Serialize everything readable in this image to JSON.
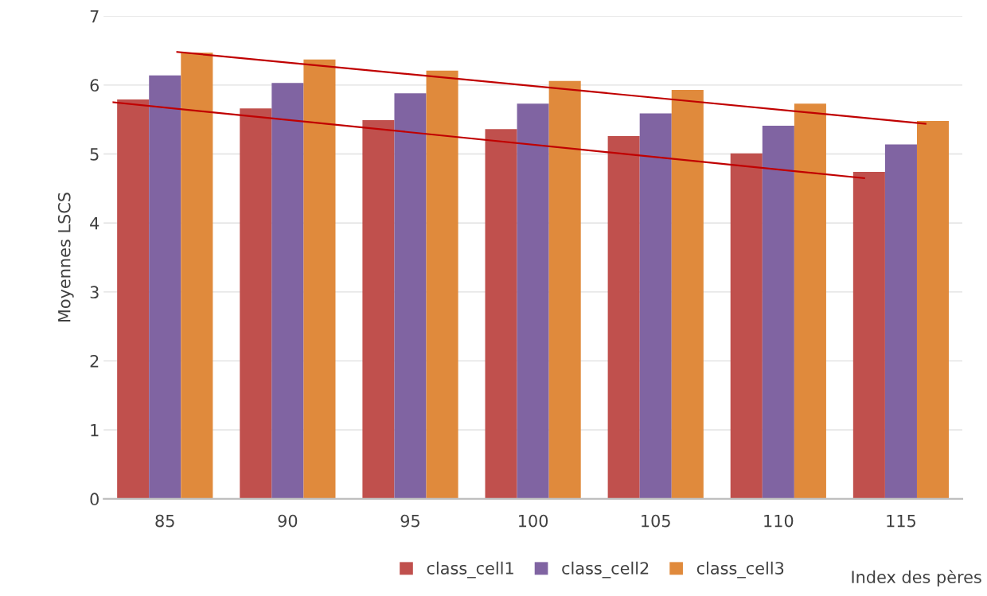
{
  "chart_data": {
    "type": "bar",
    "ylabel": "Moyennes LSCS",
    "xlabel": "Index des pères",
    "x": [
      85,
      90,
      95,
      100,
      105,
      110,
      115
    ],
    "xlim": [
      82.5,
      117.5
    ],
    "xticks": [
      85,
      90,
      95,
      100,
      105,
      110,
      115
    ],
    "ylim": [
      0,
      7
    ],
    "yticks": [
      0,
      1,
      2,
      3,
      4,
      5,
      6,
      7
    ],
    "grid": "y",
    "legend": "bottom",
    "series": [
      {
        "name": "class_cell1",
        "color": "#c0504d",
        "values": [
          5.79,
          5.66,
          5.49,
          5.36,
          5.26,
          5.01,
          4.74
        ]
      },
      {
        "name": "class_cell2",
        "color": "#8064a2",
        "values": [
          6.14,
          6.03,
          5.88,
          5.73,
          5.59,
          5.41,
          5.14
        ]
      },
      {
        "name": "class_cell3",
        "color": "#e08a3c",
        "values": [
          6.47,
          6.37,
          6.21,
          6.06,
          5.93,
          5.73,
          5.48
        ]
      },
      {
        "type": "line",
        "color": "#c00000",
        "x": [
          82.9,
          113.5
        ],
        "values": [
          5.75,
          4.65
        ]
      },
      {
        "type": "line",
        "color": "#c00000",
        "x": [
          85.5,
          116.0
        ],
        "values": [
          6.48,
          5.44
        ]
      }
    ]
  }
}
